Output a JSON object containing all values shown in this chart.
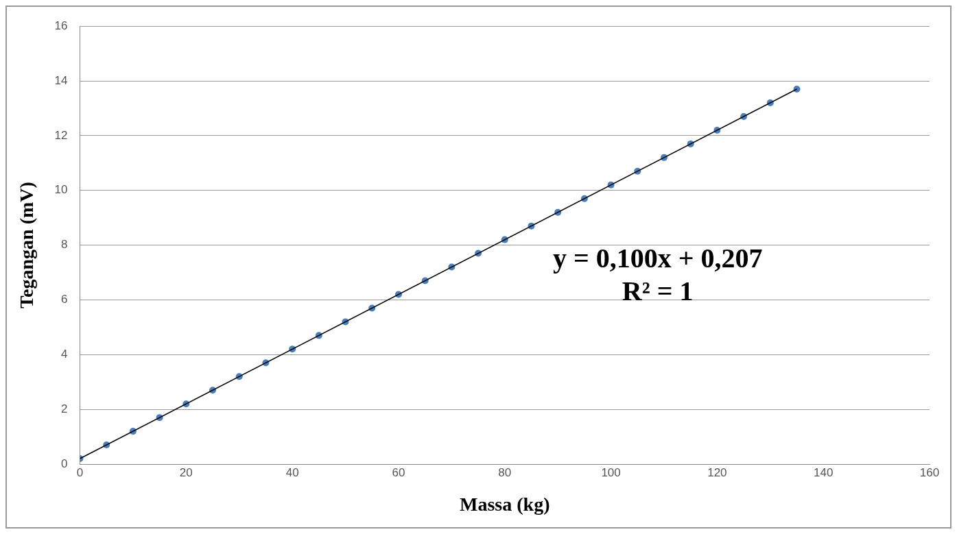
{
  "chart_data": {
    "type": "scatter",
    "xlabel": "Massa (kg)",
    "ylabel": "Tegangan (mV)",
    "xlim": [
      0,
      160
    ],
    "xticks": [
      0,
      20,
      40,
      60,
      80,
      100,
      120,
      140,
      160
    ],
    "ylim": [
      0,
      16
    ],
    "yticks": [
      0,
      2,
      4,
      6,
      8,
      10,
      12,
      14,
      16
    ],
    "grid": "y",
    "legend": false,
    "marker": "circle",
    "annotations": [
      "y = 0,100x + 0,207",
      "R² = 1"
    ],
    "series": [
      {
        "color": "#4a7ebb",
        "x": [
          0,
          5,
          10,
          15,
          20,
          25,
          30,
          35,
          40,
          45,
          50,
          55,
          60,
          65,
          70,
          75,
          80,
          85,
          90,
          95,
          100,
          105,
          110,
          115,
          120,
          125,
          130,
          135
        ],
        "values": [
          0.2,
          0.7,
          1.2,
          1.7,
          2.2,
          2.7,
          3.2,
          3.7,
          4.2,
          4.7,
          5.2,
          5.7,
          6.2,
          6.7,
          7.2,
          7.7,
          8.2,
          8.7,
          9.2,
          9.7,
          10.2,
          10.7,
          11.2,
          11.7,
          12.2,
          12.7,
          13.2,
          13.7
        ]
      },
      {
        "type": "line",
        "color": "#000000",
        "marker": "none",
        "line_style": "solid",
        "x": [
          0,
          135
        ],
        "values": [
          0.2,
          13.7
        ]
      }
    ]
  }
}
